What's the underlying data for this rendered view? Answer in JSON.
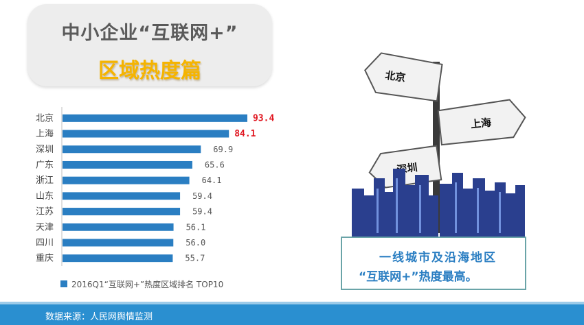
{
  "header": {
    "title_line1": "中小企业“互联网+”",
    "title_line2": "区域热度篇"
  },
  "chart_data": {
    "type": "bar",
    "orientation": "horizontal",
    "categories": [
      "北京",
      "上海",
      "深圳",
      "广东",
      "浙江",
      "山东",
      "江苏",
      "天津",
      "四川",
      "重庆"
    ],
    "series": [
      {
        "name": "2016Q1“互联网+”热度区域排名 TOP10",
        "values": [
          93.4,
          84.1,
          69.9,
          65.6,
          64.1,
          59.4,
          59.4,
          56.1,
          56.0,
          55.7
        ],
        "value_labels": [
          "93.4",
          "84.1",
          "69.9",
          "65.6",
          "64.1",
          "59.4",
          "59.4",
          "56.1",
          "56.0",
          "55.7"
        ]
      }
    ],
    "highlighted_indices": [
      0,
      1
    ],
    "xlim": [
      0,
      100
    ],
    "grid": false,
    "legend_position": "bottom-left",
    "colors": {
      "bar": "#2a7ec2",
      "highlight_label": "#e0141e"
    }
  },
  "illustration": {
    "signs": [
      "北京",
      "上海",
      "深圳"
    ]
  },
  "callout": {
    "line1": "一线城市及沿海地区",
    "line2": "“互联网+”热度最高。"
  },
  "footer": {
    "source": "数据来源：人民网舆情监测"
  }
}
